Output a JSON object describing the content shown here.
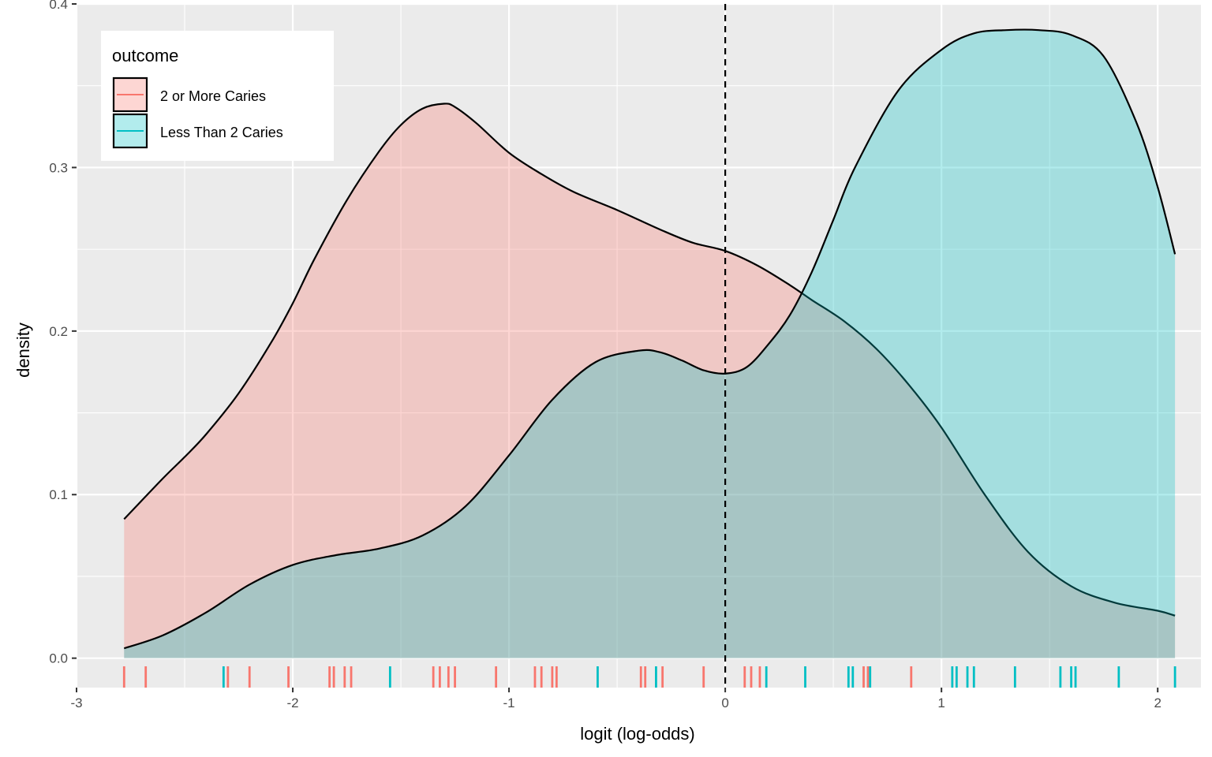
{
  "chart_data": {
    "type": "area",
    "title": "",
    "xlabel": "logit (log-odds)",
    "ylabel": "density",
    "xlim": [
      -3.0,
      2.2
    ],
    "ylim": [
      -0.018,
      0.4
    ],
    "x_ticks": [
      -3,
      -2,
      -1,
      0,
      1,
      2
    ],
    "x_tick_labels": [
      "-3",
      "-2",
      "-1",
      "0",
      "1",
      "2"
    ],
    "y_ticks": [
      0.0,
      0.1,
      0.2,
      0.3,
      0.4
    ],
    "y_tick_labels": [
      "0.0",
      "0.1",
      "0.2",
      "0.3",
      "0.4"
    ],
    "grid": true,
    "vline": {
      "x": 0,
      "style": "dashed",
      "color": "#000000"
    },
    "legend": {
      "title": "outcome",
      "position": "top-left",
      "entries": [
        "2 or More Caries",
        "Less Than 2 Caries"
      ]
    },
    "series": [
      {
        "name": "2 or More Caries",
        "color": "#F8766D",
        "fill": "#F8766D",
        "fill_opacity": 0.3,
        "x": [
          -2.78,
          -2.6,
          -2.5,
          -2.4,
          -2.25,
          -2.1,
          -2.0,
          -1.9,
          -1.75,
          -1.6,
          -1.5,
          -1.4,
          -1.3,
          -1.25,
          -1.15,
          -1.0,
          -0.85,
          -0.7,
          -0.5,
          -0.3,
          -0.15,
          0.0,
          0.15,
          0.3,
          0.4,
          0.55,
          0.7,
          0.85,
          1.0,
          1.2,
          1.4,
          1.6,
          1.8,
          2.0,
          2.08
        ],
        "y": [
          0.085,
          0.11,
          0.123,
          0.137,
          0.162,
          0.193,
          0.217,
          0.244,
          0.28,
          0.31,
          0.326,
          0.336,
          0.339,
          0.337,
          0.327,
          0.309,
          0.296,
          0.285,
          0.274,
          0.262,
          0.254,
          0.249,
          0.24,
          0.228,
          0.219,
          0.206,
          0.189,
          0.167,
          0.141,
          0.1,
          0.065,
          0.044,
          0.034,
          0.029,
          0.026
        ]
      },
      {
        "name": "Less Than 2 Caries",
        "color": "#00BFC4",
        "fill": "#00BFC4",
        "fill_opacity": 0.3,
        "x": [
          -2.78,
          -2.6,
          -2.4,
          -2.2,
          -2.0,
          -1.8,
          -1.6,
          -1.4,
          -1.2,
          -1.0,
          -0.8,
          -0.6,
          -0.4,
          -0.3,
          -0.2,
          -0.1,
          0.0,
          0.1,
          0.2,
          0.3,
          0.4,
          0.5,
          0.6,
          0.8,
          1.0,
          1.15,
          1.3,
          1.45,
          1.6,
          1.75,
          1.9,
          2.0,
          2.08
        ],
        "y": [
          0.006,
          0.014,
          0.028,
          0.045,
          0.057,
          0.063,
          0.067,
          0.075,
          0.093,
          0.124,
          0.158,
          0.181,
          0.188,
          0.187,
          0.182,
          0.176,
          0.174,
          0.178,
          0.192,
          0.21,
          0.236,
          0.268,
          0.3,
          0.347,
          0.372,
          0.382,
          0.384,
          0.384,
          0.381,
          0.368,
          0.328,
          0.288,
          0.247
        ]
      }
    ],
    "rug": {
      "2 or More Caries": [
        -2.78,
        -2.68,
        -2.3,
        -2.2,
        -2.02,
        -1.83,
        -1.81,
        -1.76,
        -1.73,
        -1.35,
        -1.32,
        -1.28,
        -1.25,
        -1.06,
        -0.88,
        -0.85,
        -0.8,
        -0.78,
        -0.39,
        -0.37,
        -0.29,
        -0.1,
        0.09,
        0.12,
        0.16,
        0.64,
        0.66,
        0.86
      ],
      "Less Than 2 Caries": [
        -2.32,
        -1.55,
        -0.59,
        -0.32,
        0.19,
        0.37,
        0.57,
        0.59,
        0.67,
        1.05,
        1.07,
        1.12,
        1.15,
        1.34,
        1.55,
        1.6,
        1.62,
        1.82,
        2.08
      ]
    }
  }
}
